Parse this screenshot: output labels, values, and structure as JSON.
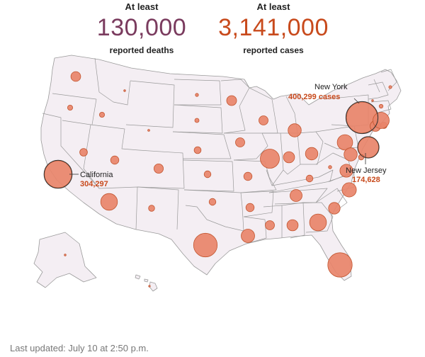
{
  "header": {
    "deaths": {
      "prefix": "At least",
      "value": "130,000",
      "label": "reported deaths"
    },
    "cases": {
      "prefix": "At least",
      "value": "3,141,000",
      "label": "reported cases"
    }
  },
  "callouts": {
    "new_york": {
      "name": "New York",
      "value": "400,299 cases"
    },
    "california": {
      "name": "California",
      "value": "304,297"
    },
    "new_jersey": {
      "name": "New Jersey",
      "value": "174,628"
    }
  },
  "footer": {
    "updated": "Last updated: July 10 at 2:50 p.m."
  },
  "colors": {
    "state_fill": "#f4eef3",
    "state_stroke": "#9a9a9a",
    "bubble_fill": "#e8846a",
    "bubble_stroke": "#c2552f",
    "deaths_accent": "#7a3b5e",
    "cases_accent": "#c84a1c"
  },
  "bubbles": [
    {
      "state": "WA",
      "cases": 39000
    },
    {
      "state": "OR",
      "cases": 11000
    },
    {
      "state": "CA",
      "cases": 304297
    },
    {
      "state": "NV",
      "cases": 24000
    },
    {
      "state": "ID",
      "cases": 11000
    },
    {
      "state": "MT",
      "cases": 1500
    },
    {
      "state": "WY",
      "cases": 1700
    },
    {
      "state": "UT",
      "cases": 28000
    },
    {
      "state": "AZ",
      "cases": 116000
    },
    {
      "state": "CO",
      "cases": 36000
    },
    {
      "state": "NM",
      "cases": 15000
    },
    {
      "state": "ND",
      "cases": 4000
    },
    {
      "state": "SD",
      "cases": 7500
    },
    {
      "state": "NE",
      "cases": 20000
    },
    {
      "state": "KS",
      "cases": 19000
    },
    {
      "state": "OK",
      "cases": 19000
    },
    {
      "state": "TX",
      "cases": 230000
    },
    {
      "state": "MN",
      "cases": 41000
    },
    {
      "state": "IA",
      "cases": 35000
    },
    {
      "state": "MO",
      "cases": 28000
    },
    {
      "state": "AR",
      "cases": 28000
    },
    {
      "state": "LA",
      "cases": 75000
    },
    {
      "state": "WI",
      "cases": 35000
    },
    {
      "state": "IL",
      "cases": 150000
    },
    {
      "state": "MI",
      "cases": 72000
    },
    {
      "state": "IN",
      "cases": 51000
    },
    {
      "state": "OH",
      "cases": 64000
    },
    {
      "state": "KY",
      "cases": 19000
    },
    {
      "state": "TN",
      "cases": 60000
    },
    {
      "state": "MS",
      "cases": 35000
    },
    {
      "state": "AL",
      "cases": 51000
    },
    {
      "state": "GA",
      "cases": 118000
    },
    {
      "state": "FL",
      "cases": 245000
    },
    {
      "state": "SC",
      "cases": 56000
    },
    {
      "state": "NC",
      "cases": 85000
    },
    {
      "state": "VA",
      "cases": 69000
    },
    {
      "state": "WV",
      "cases": 4300
    },
    {
      "state": "PA",
      "cases": 98000
    },
    {
      "state": "NY",
      "cases": 400299
    },
    {
      "state": "NJ",
      "cases": 174628
    },
    {
      "state": "MD",
      "cases": 72000
    },
    {
      "state": "DE",
      "cases": 12000
    },
    {
      "state": "CT",
      "cases": 47000
    },
    {
      "state": "RI",
      "cases": 17000
    },
    {
      "state": "MA",
      "cases": 110000
    },
    {
      "state": "VT",
      "cases": 1300
    },
    {
      "state": "NH",
      "cases": 6000
    },
    {
      "state": "ME",
      "cases": 3500
    },
    {
      "state": "AK",
      "cases": 1500
    },
    {
      "state": "HI",
      "cases": 1100
    }
  ]
}
